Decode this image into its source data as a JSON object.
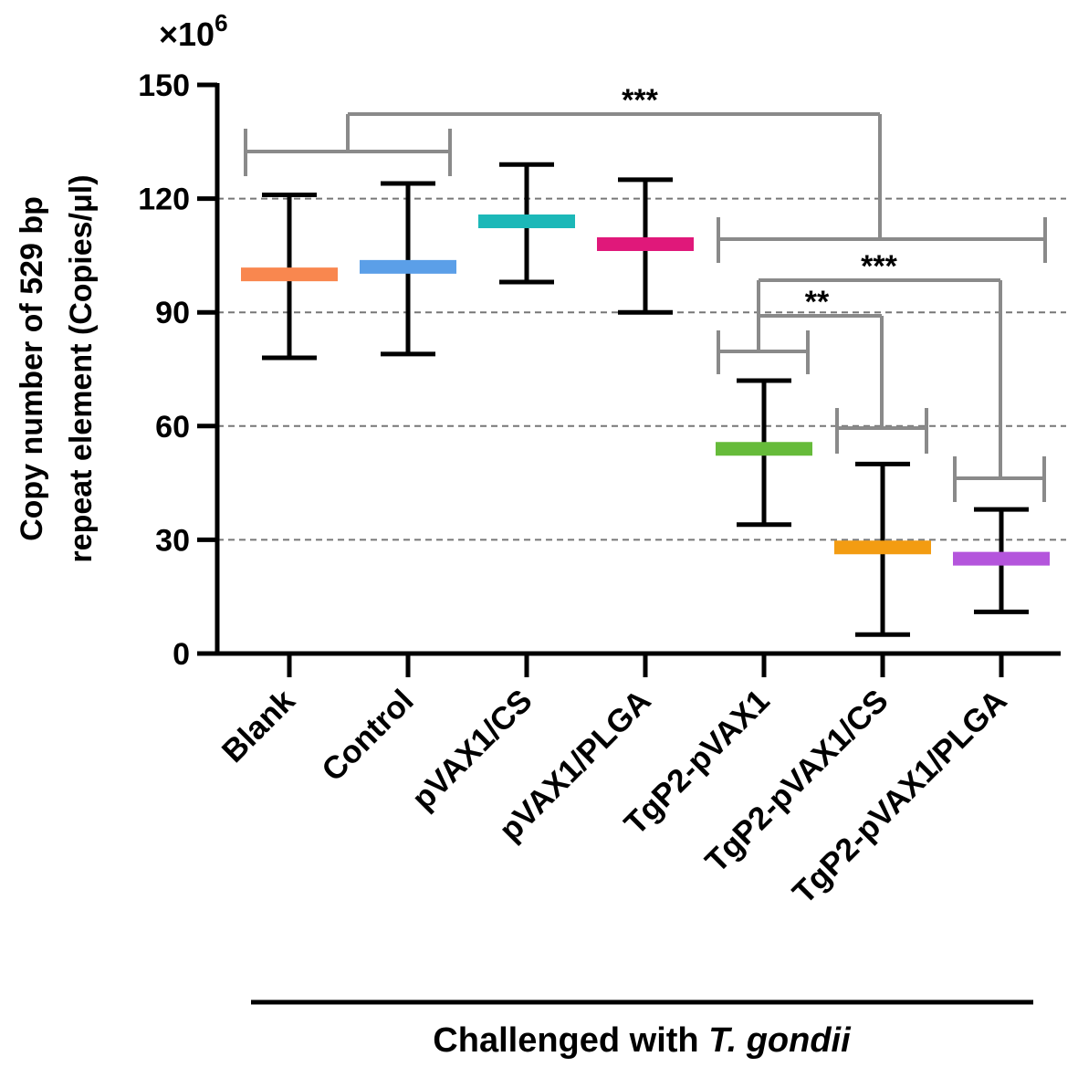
{
  "chart_data": {
    "type": "mean_sd",
    "title": "",
    "ylabel_line1": "Copy number of 529 bp",
    "ylabel_line2": "repeat element (Copies/μl)",
    "yscale_prefix": "×10",
    "yscale_exp": "6",
    "ylim": [
      0,
      150
    ],
    "yticks": [
      0,
      30,
      60,
      90,
      120,
      150
    ],
    "grid": "dashed horizontal at 30, 60, 90, 120",
    "categories": [
      "Blank",
      "Control",
      "pVAX1/CS",
      "pVAX1/PLGA",
      "TgP2-pVAX1",
      "TgP2-pVAX1/CS",
      "TgP2-pVAX1/PLGA"
    ],
    "means": [
      100,
      102,
      114,
      108,
      54,
      28,
      25
    ],
    "upper": [
      121,
      124,
      129,
      125,
      72,
      50,
      38
    ],
    "lower": [
      78,
      79,
      98,
      90,
      34,
      5,
      11
    ],
    "colors": [
      "#F9874F",
      "#5B9FE8",
      "#1CB8B8",
      "#E0187A",
      "#66BB3A",
      "#F39C12",
      "#B455DC"
    ],
    "group_label_prefix": "Challenged with ",
    "group_label_italic": "T. gondii",
    "significance": [
      {
        "label": "***",
        "between": "Blank+Control vs TgP2 groups"
      },
      {
        "label": "***",
        "between": "TgP2-pVAX1 vs TgP2-pVAX1/PLGA"
      },
      {
        "label": "**",
        "between": "TgP2-pVAX1 vs TgP2-pVAX1/CS"
      }
    ]
  }
}
